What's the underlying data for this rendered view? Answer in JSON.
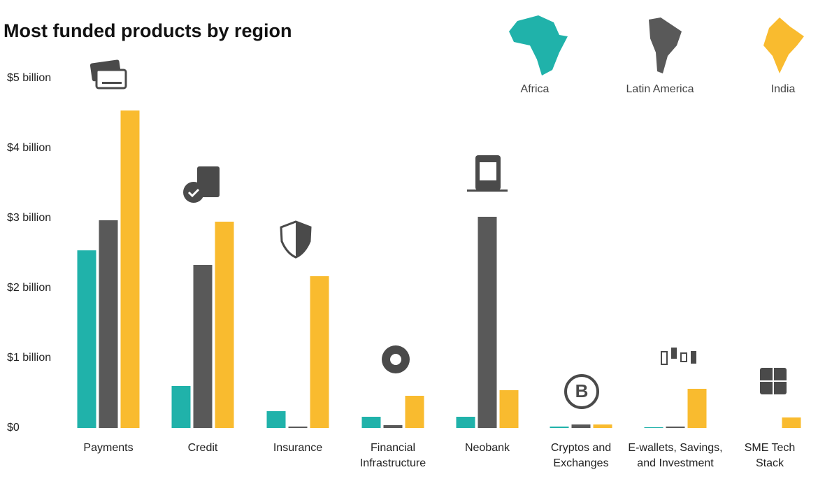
{
  "chart_data": {
    "type": "bar",
    "title": "Most funded products by region",
    "categories": [
      "Payments",
      "Credit",
      "Insurance",
      "Financial Infrastructure",
      "Neobank",
      "Cryptos and Exchanges",
      "E-wallets, Savings, and Investment",
      "SME Tech Stack"
    ],
    "series": [
      {
        "name": "Africa",
        "color": "#20b2aa",
        "values": [
          2.54,
          0.6,
          0.24,
          0.16,
          0.16,
          0.02,
          0.01,
          0
        ]
      },
      {
        "name": "Latin America",
        "color": "#595959",
        "values": [
          2.97,
          2.33,
          0.02,
          0.04,
          3.02,
          0.05,
          0.02,
          0
        ]
      },
      {
        "name": "India",
        "color": "#f9bb2f",
        "values": [
          4.54,
          2.95,
          2.17,
          0.46,
          0.54,
          0.05,
          0.56,
          0.15
        ]
      }
    ],
    "ylim": [
      0,
      5
    ],
    "yticks": [
      {
        "value": 0,
        "label": "$0"
      },
      {
        "value": 1,
        "label": "$1 billion"
      },
      {
        "value": 2,
        "label": "$2 billion"
      },
      {
        "value": 3,
        "label": "$3 billion"
      },
      {
        "value": 4,
        "label": "$4 billion"
      },
      {
        "value": 5,
        "label": "$5 billion"
      }
    ]
  }
}
